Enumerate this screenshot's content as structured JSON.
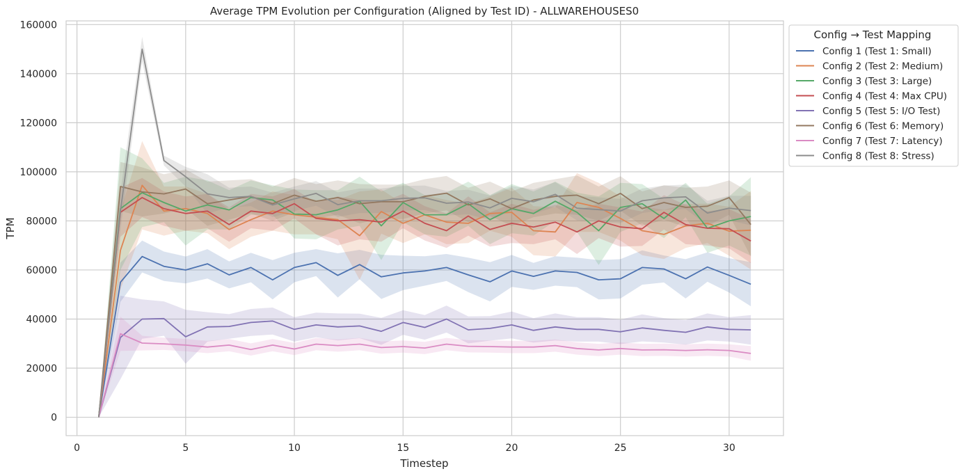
{
  "chart_data": {
    "type": "line",
    "title": "Average TPM Evolution per Configuration (Aligned by Test ID) - ALLWAREHOUSES0",
    "xlabel": "Timestep",
    "ylabel": "TPM",
    "xlim": [
      -0.5,
      32.5
    ],
    "ylim": [
      -7500,
      161500
    ],
    "xticks": [
      0,
      5,
      10,
      15,
      20,
      25,
      30
    ],
    "yticks": [
      0,
      20000,
      40000,
      60000,
      80000,
      100000,
      120000,
      140000,
      160000
    ],
    "grid": true,
    "legend": {
      "title": "Config → Test Mapping",
      "placement": "outside-upper-right"
    },
    "x": [
      1,
      2,
      3,
      4,
      5,
      6,
      7,
      8,
      9,
      10,
      11,
      12,
      13,
      14,
      15,
      16,
      17,
      18,
      19,
      20,
      21,
      22,
      23,
      24,
      25,
      26,
      27,
      28,
      29,
      30,
      31
    ],
    "series": [
      {
        "name": "Config 1 (Test 1: Small)",
        "color": "#4c72b0",
        "values": [
          0,
          55000,
          65500,
          61500,
          60000,
          62500,
          58000,
          61000,
          56000,
          61000,
          63000,
          57800,
          62200,
          57200,
          58800,
          59600,
          61000,
          58000,
          55200,
          59600,
          57400,
          59600,
          59000,
          56000,
          56400,
          61000,
          60400,
          56400,
          61200,
          57800,
          54200
        ],
        "band": [
          0,
          8000,
          6500,
          6000,
          5500,
          6000,
          5500,
          6000,
          8000,
          6000,
          5500,
          9000,
          6000,
          9000,
          7000,
          6000,
          5500,
          7000,
          8000,
          6500,
          5500,
          6000,
          6000,
          8000,
          8000,
          7000,
          5500,
          8000,
          6000,
          7000,
          9000
        ]
      },
      {
        "name": "Config 2 (Test 2: Medium)",
        "color": "#dd8452",
        "values": [
          0,
          68000,
          94500,
          84000,
          85000,
          83000,
          76500,
          80500,
          84000,
          82500,
          81500,
          80500,
          74000,
          83800,
          79000,
          82500,
          79500,
          79000,
          83000,
          83500,
          76000,
          75500,
          87500,
          85500,
          81000,
          76000,
          74500,
          78000,
          79000,
          75800,
          76200
        ],
        "band": [
          0,
          16000,
          18000,
          10000,
          9000,
          8000,
          8000,
          7000,
          8000,
          8000,
          7000,
          8000,
          18000,
          9000,
          8000,
          8000,
          9000,
          8000,
          7000,
          10000,
          10000,
          10000,
          12000,
          10000,
          9000,
          10000,
          10000,
          9000,
          8000,
          10000,
          16000
        ]
      },
      {
        "name": "Config 3 (Test 3: Large)",
        "color": "#55a868",
        "values": [
          0,
          85000,
          91500,
          87500,
          84000,
          86500,
          84500,
          89500,
          88500,
          82800,
          82500,
          84500,
          88000,
          78000,
          87500,
          82500,
          82500,
          87000,
          80500,
          85000,
          83000,
          88000,
          83500,
          76000,
          85500,
          87000,
          81000,
          88500,
          77000,
          80000,
          81800
        ],
        "band": [
          0,
          25000,
          14000,
          8000,
          14000,
          10000,
          8000,
          7000,
          6000,
          10000,
          10000,
          8000,
          10000,
          14000,
          8000,
          8000,
          9000,
          9000,
          10000,
          10000,
          9000,
          8000,
          8000,
          14000,
          10000,
          8000,
          8000,
          7000,
          10000,
          10000,
          16000
        ]
      },
      {
        "name": "Config 4 (Test 4: Max CPU)",
        "color": "#c44e52",
        "values": [
          0,
          83500,
          89500,
          85000,
          83000,
          84000,
          78500,
          84000,
          83000,
          87000,
          81000,
          80000,
          80500,
          79500,
          84000,
          79000,
          76000,
          82000,
          76500,
          79000,
          77500,
          79500,
          75500,
          80000,
          77500,
          76800,
          83500,
          78500,
          77000,
          76800,
          71800
        ],
        "band": [
          0,
          10000,
          8000,
          7000,
          7000,
          7000,
          7000,
          7000,
          7000,
          6000,
          6500,
          10000,
          8000,
          8000,
          7000,
          7000,
          7000,
          8000,
          7000,
          8000,
          7000,
          7000,
          9000,
          7000,
          8000,
          7000,
          7000,
          8000,
          7000,
          8000,
          9000
        ]
      },
      {
        "name": "Config 5 (Test 5: I/O Test)",
        "color": "#8172b3",
        "values": [
          0,
          32500,
          40000,
          40200,
          32800,
          36800,
          37000,
          38600,
          39200,
          35800,
          37600,
          36800,
          37200,
          35000,
          38600,
          36600,
          40000,
          35600,
          36200,
          37600,
          35400,
          36800,
          35800,
          35800,
          34800,
          36400,
          35400,
          34600,
          36800,
          35800,
          35600
        ],
        "band": [
          0,
          17000,
          8000,
          7000,
          11000,
          6000,
          5000,
          5500,
          5500,
          5000,
          5000,
          5500,
          5000,
          5500,
          5000,
          5000,
          5500,
          5500,
          5000,
          5500,
          5000,
          5500,
          5000,
          5000,
          5000,
          5500,
          5000,
          5000,
          5500,
          5000,
          6000
        ]
      },
      {
        "name": "Config 6 (Test 6: Memory)",
        "color": "#937860",
        "values": [
          0,
          94000,
          91800,
          91000,
          93000,
          87000,
          88500,
          90000,
          87000,
          90500,
          88000,
          89500,
          87000,
          87800,
          87800,
          90000,
          91300,
          86500,
          89000,
          85000,
          88500,
          90000,
          90500,
          87000,
          91200,
          85000,
          87500,
          85500,
          86000,
          89500,
          78500
        ],
        "band": [
          0,
          10000,
          10000,
          8000,
          8000,
          9000,
          8000,
          7000,
          7000,
          7000,
          7000,
          7000,
          8000,
          7000,
          7000,
          7000,
          7000,
          7000,
          7000,
          7000,
          7000,
          7000,
          8000,
          7000,
          7000,
          7000,
          7000,
          8000,
          8000,
          7000,
          13000
        ]
      },
      {
        "name": "Config 7 (Test 7: Latency)",
        "color": "#da8bc3",
        "values": [
          0,
          34000,
          30200,
          29900,
          29400,
          28600,
          29400,
          27600,
          29400,
          27800,
          29800,
          29200,
          29800,
          28400,
          28800,
          28200,
          29800,
          28900,
          28800,
          28600,
          28600,
          29200,
          28000,
          27400,
          28000,
          27400,
          27500,
          27200,
          27500,
          27200,
          26000
        ],
        "band": [
          0,
          7000,
          3000,
          2500,
          2500,
          2500,
          2500,
          2500,
          2500,
          2500,
          2500,
          2500,
          2500,
          2500,
          2500,
          2500,
          2500,
          2500,
          2500,
          2500,
          2500,
          2500,
          2500,
          2500,
          2500,
          2500,
          2500,
          2500,
          2500,
          2500,
          3000
        ]
      },
      {
        "name": "Config 8 (Test 8: Stress)",
        "color": "#8c8c8c",
        "values": [
          0,
          84000,
          150000,
          104600,
          98000,
          91000,
          89500,
          90000,
          86500,
          89000,
          91200,
          86600,
          88200,
          88200,
          89200,
          89400,
          87200,
          87700,
          85300,
          89200,
          87800,
          90800,
          85200,
          84600,
          84000,
          88200,
          89400,
          89800,
          83200,
          85200,
          84200
        ],
        "band": [
          0,
          8000,
          5000,
          2000,
          4000,
          8000,
          4000,
          4000,
          5000,
          5000,
          5000,
          5000,
          5000,
          5000,
          5000,
          5000,
          5000,
          5000,
          5000,
          5000,
          5000,
          5000,
          5000,
          5000,
          5000,
          5000,
          5000,
          5000,
          5000,
          5000,
          6000
        ]
      }
    ]
  }
}
